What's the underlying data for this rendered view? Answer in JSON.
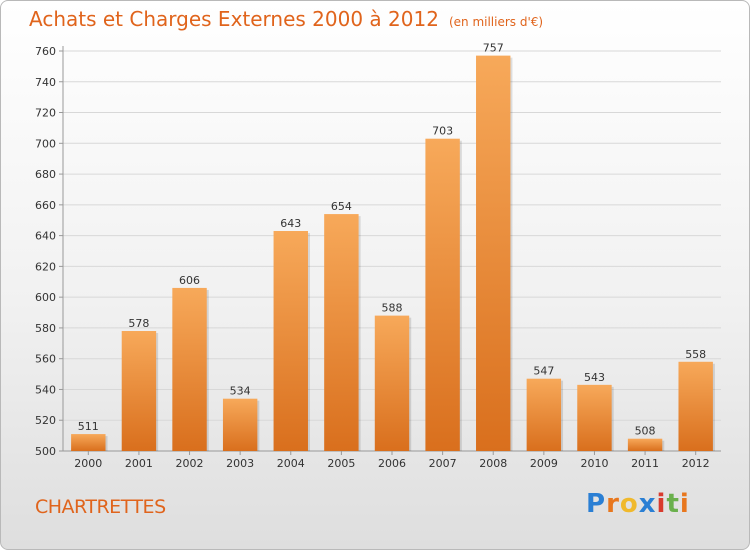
{
  "header": {
    "title": "Achats et Charges Externes 2000 à 2012",
    "subtitle": "(en milliers d'€)"
  },
  "footer": {
    "place": "CHARTRETTES",
    "logo_letters": [
      "P",
      "r",
      "o",
      "x",
      "i",
      "t",
      "i"
    ],
    "logo_colors": [
      "#2a7fd4",
      "#e8771e",
      "#f0b92c",
      "#2a7fd4",
      "#d93b2e",
      "#6ab04c",
      "#e8771e"
    ]
  },
  "colors": {
    "bar_light": "#f7a95a",
    "bar_dark": "#d96f1d",
    "title": "#e0641c",
    "grid": "#d8d8d8"
  },
  "chart_data": {
    "type": "bar",
    "title": "Achats et Charges Externes 2000 à 2012",
    "subtitle": "(en milliers d'€)",
    "categories": [
      "2000",
      "2001",
      "2002",
      "2003",
      "2004",
      "2005",
      "2006",
      "2007",
      "2008",
      "2009",
      "2010",
      "2011",
      "2012"
    ],
    "values": [
      511,
      578,
      606,
      534,
      643,
      654,
      588,
      703,
      757,
      547,
      543,
      508,
      558
    ],
    "ylim": [
      500,
      760
    ],
    "yticks": [
      500,
      520,
      540,
      560,
      580,
      600,
      620,
      640,
      660,
      680,
      700,
      720,
      740,
      760
    ],
    "grid": true,
    "data_labels": true
  }
}
